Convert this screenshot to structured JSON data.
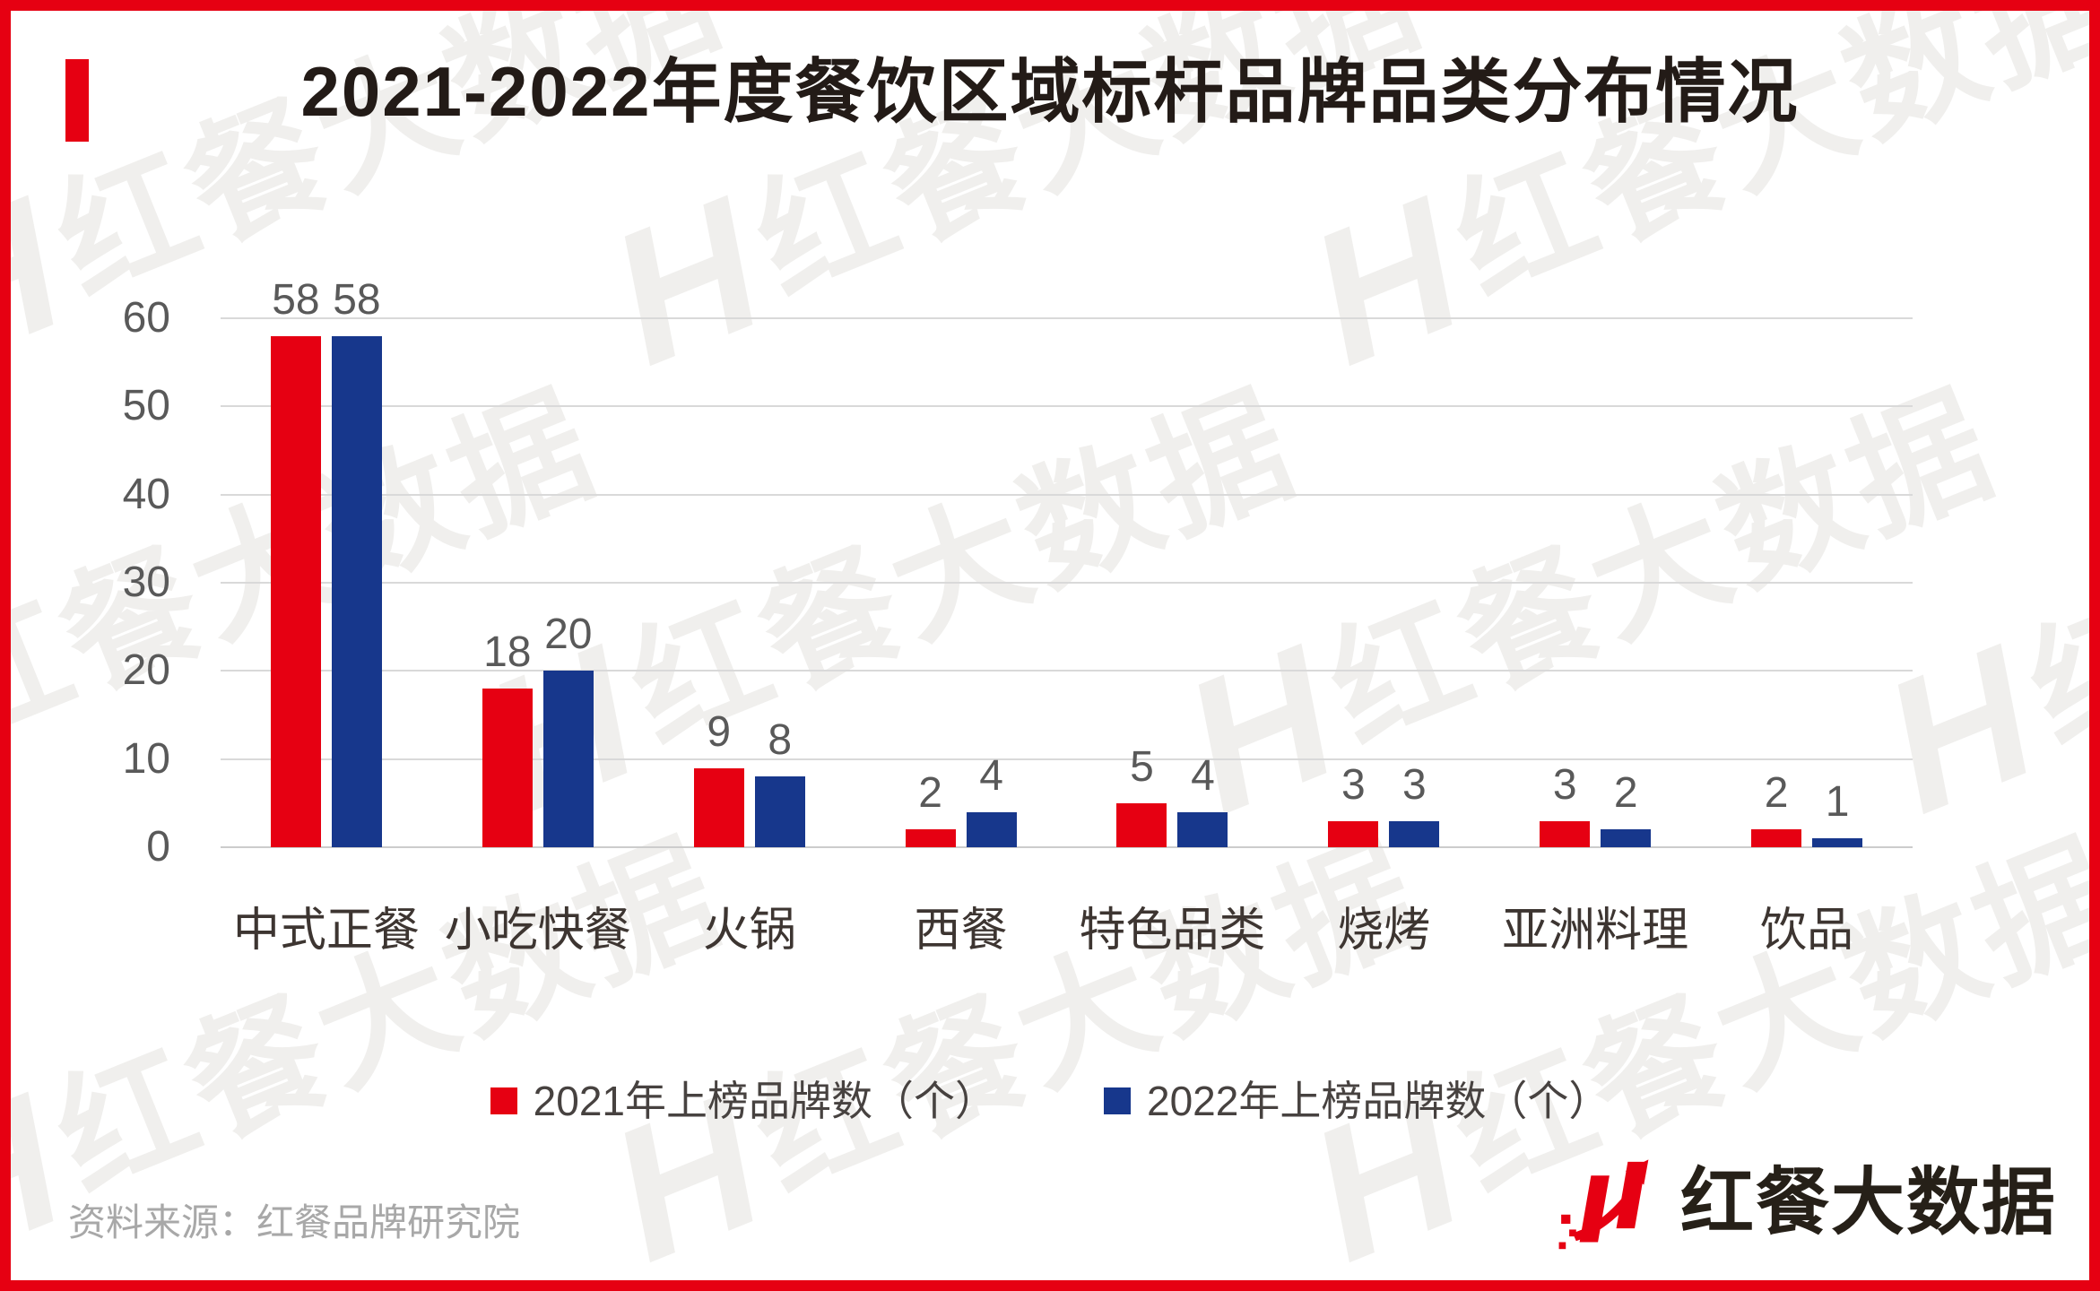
{
  "title": "2021-2022年度餐饮区域标杆品牌品类分布情况",
  "source": {
    "label": "资料来源：红餐品牌研究院"
  },
  "logo": {
    "text": "红餐大数据"
  },
  "watermark": {
    "text": "红餐大数据"
  },
  "colors": {
    "accent_red": "#e60012",
    "series_red": "#e60012",
    "series_blue": "#17378c",
    "grid": "#d9d9d9",
    "axis_text": "#595959",
    "category_text": "#3d3531",
    "title_text": "#231b17",
    "source_text": "#a8a8a8",
    "legend_text": "#474240"
  },
  "chart_data": {
    "type": "bar",
    "title": "2021-2022年度餐饮区域标杆品牌品类分布情况",
    "categories": [
      "中式正餐",
      "小吃快餐",
      "火锅",
      "西餐",
      "特色品类",
      "烧烤",
      "亚洲料理",
      "饮品"
    ],
    "series": [
      {
        "name": "2021年上榜品牌数（个）",
        "color": "#e60012",
        "values": [
          58,
          18,
          9,
          2,
          5,
          3,
          3,
          2
        ]
      },
      {
        "name": "2022年上榜品牌数（个）",
        "color": "#17378c",
        "values": [
          58,
          20,
          8,
          4,
          4,
          3,
          2,
          1
        ]
      }
    ],
    "xlabel": "",
    "ylabel": "",
    "ylim": [
      0,
      60
    ],
    "yticks": [
      0,
      10,
      20,
      30,
      40,
      50,
      60
    ],
    "grid": true,
    "data_labels": true,
    "legend_position": "bottom"
  }
}
